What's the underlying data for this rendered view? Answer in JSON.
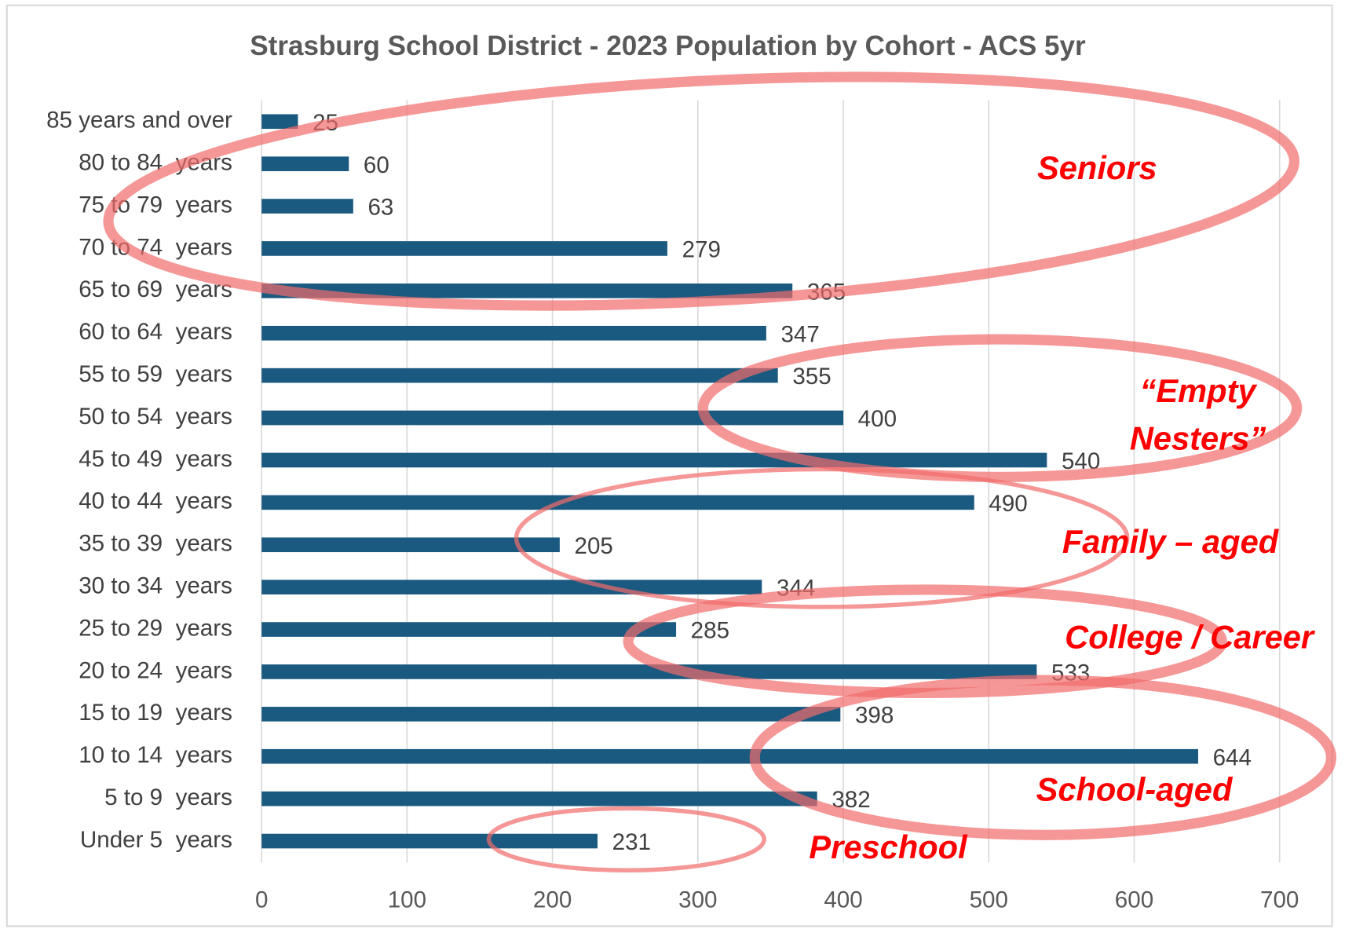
{
  "chart_data": {
    "type": "bar",
    "orientation": "horizontal",
    "title": "Strasburg School District - 2023 Population by Cohort - ACS 5yr",
    "categories": [
      "85 years and over",
      "80 to 84  years",
      "75 to 79  years",
      "70 to 74  years",
      "65 to 69  years",
      "60 to 64  years",
      "55 to 59  years",
      "50 to 54  years",
      "45 to 49  years",
      "40 to 44  years",
      "35 to 39  years",
      "30 to 34  years",
      "25 to 29  years",
      "20 to 24  years",
      "15 to 19  years",
      "10 to 14  years",
      "5 to 9  years",
      "Under 5  years"
    ],
    "values": [
      25,
      60,
      63,
      279,
      365,
      347,
      355,
      400,
      540,
      490,
      205,
      344,
      285,
      533,
      398,
      644,
      382,
      231
    ],
    "color": "#1b5a80",
    "xlim": [
      0,
      700
    ],
    "xticks": [
      0,
      100,
      200,
      300,
      400,
      500,
      600,
      700
    ],
    "grid": true,
    "annotations": [
      {
        "lines": [
          "Seniors"
        ]
      },
      {
        "lines": [
          "“Empty",
          "Nesters”"
        ]
      },
      {
        "lines": [
          "Family – aged"
        ]
      },
      {
        "lines": [
          "College / Career"
        ]
      },
      {
        "lines": [
          "School-aged"
        ]
      },
      {
        "lines": [
          "Preschool"
        ]
      }
    ]
  }
}
